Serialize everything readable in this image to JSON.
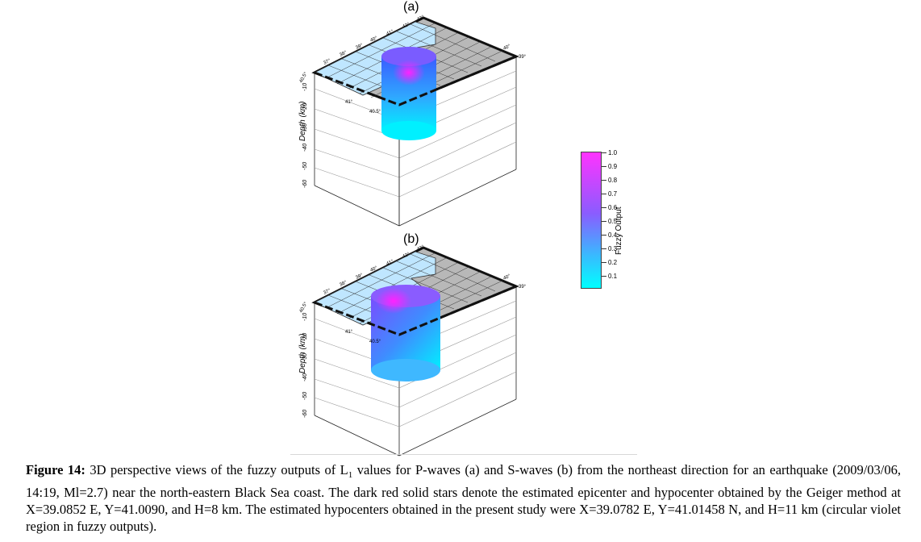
{
  "panels": [
    {
      "id": "a",
      "label": "(a)"
    },
    {
      "id": "b",
      "label": "(b)"
    }
  ],
  "depth_axis": {
    "title": "Depth (km)",
    "ticks": [
      "-10",
      "-20",
      "-30",
      "-40",
      "-50",
      "-60"
    ]
  },
  "lat_ticks_left": [
    "40.5°",
    "41°",
    "40.5°"
  ],
  "lon_ticks_top": [
    "37°",
    "38°",
    "39°",
    "40°",
    "41°",
    "42°",
    "43°",
    "42°",
    "41°",
    "40°",
    "39°"
  ],
  "colorbar": {
    "title": "Fuzzy Output",
    "ticks": [
      "1.0",
      "0.9",
      "0.8",
      "0.7",
      "0.6",
      "0.5",
      "0.4",
      "0.3",
      "0.2",
      "0.1"
    ],
    "colors": {
      "high": "#ff33ff",
      "mid": "#8a5cff",
      "low": "#00ffff"
    }
  },
  "caption": {
    "label": "Figure 14:",
    "part1": " 3D perspective views of the fuzzy outputs of L",
    "subscript": "1",
    "part2": " values for P-waves (a) and S-waves (b) from the northeast direction for an earthquake (2009/03/06, 14:19, Ml=2.7) near the north-eastern Black Sea coast. The dark red solid stars denote the estimated epicenter and hypocenter obtained by the Geiger method at X=39.0852 E, Y=41.0090, and H=8 km. The estimated hypocenters obtained in the present study were X=39.0782 E, Y=41.01458 N, and H=11 km (circular violet region in fuzzy outputs)."
  }
}
